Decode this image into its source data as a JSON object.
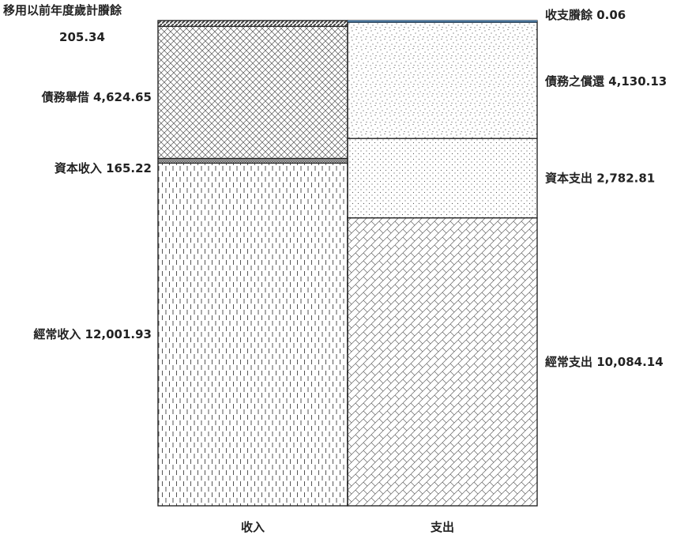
{
  "chart_data": {
    "type": "stacked_bar",
    "categories": [
      "收入",
      "支出"
    ],
    "stacks": [
      {
        "category": "收入",
        "segments": [
          {
            "key": "income-regular",
            "label": "經常收入 12,001.93",
            "value": 12001.93,
            "pattern": "dashes"
          },
          {
            "key": "income-capital",
            "label": "資本收入 165.22",
            "value": 165.22,
            "pattern": "dense"
          },
          {
            "key": "income-debt",
            "label": "債務舉借 4,624.65",
            "value": 4624.65,
            "pattern": "crosshatch"
          },
          {
            "key": "income-surplus",
            "label": "移用以前年度歲計賸餘",
            "label_value": "205.34",
            "value": 205.34,
            "pattern": "diagonal"
          }
        ]
      },
      {
        "category": "支出",
        "segments": [
          {
            "key": "expense-regular",
            "label": "經常支出 10,084.14",
            "value": 10084.14,
            "pattern": "bricks"
          },
          {
            "key": "expense-capital",
            "label": "資本支出 2,782.81",
            "value": 2782.81,
            "pattern": "dots"
          },
          {
            "key": "expense-debt",
            "label": "債務之償還 4,130.13",
            "value": 4130.13,
            "pattern": "scatter"
          },
          {
            "key": "expense-surplus",
            "label": "收支賸餘 0.06",
            "value": 0.06,
            "pattern": "blue"
          }
        ]
      }
    ],
    "colors": {
      "outline": "#222222",
      "pattern": "#555555",
      "surplus_line": "#5b9bd5"
    }
  }
}
